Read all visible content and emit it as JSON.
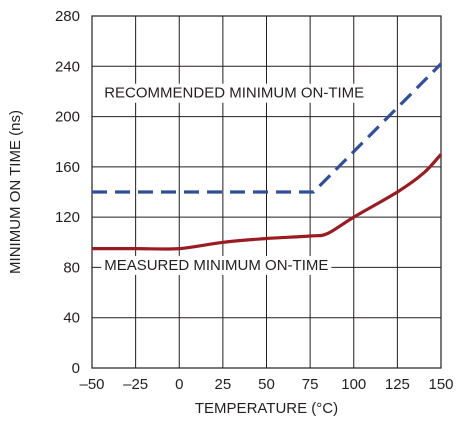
{
  "chart_data": {
    "type": "line",
    "title": "",
    "xlabel": "TEMPERATURE (°C)",
    "ylabel": "MINIMUM ON TIME (ns)",
    "xlim": [
      -50,
      150
    ],
    "ylim": [
      0,
      280
    ],
    "x_ticks": [
      -50,
      -25,
      0,
      25,
      50,
      75,
      100,
      125,
      150
    ],
    "x_tick_labels": [
      "–50",
      "–25",
      "0",
      "25",
      "50",
      "75",
      "100",
      "125",
      "150"
    ],
    "y_ticks": [
      0,
      40,
      80,
      120,
      160,
      200,
      240,
      280
    ],
    "y_tick_labels": [
      "0",
      "40",
      "80",
      "120",
      "160",
      "200",
      "240",
      "280"
    ],
    "grid": true,
    "legend": "none",
    "series": [
      {
        "name": "RECOMMENDED MINIMUM ON-TIME",
        "style": "dashed",
        "color": "#2f4f9a",
        "x": [
          -50,
          77,
          150
        ],
        "y": [
          140,
          140,
          242
        ]
      },
      {
        "name": "MEASURED MINIMUM ON-TIME",
        "style": "solid",
        "color": "#9b1c20",
        "x": [
          -50,
          -25,
          0,
          25,
          50,
          75,
          85,
          100,
          125,
          140,
          150
        ],
        "y": [
          95,
          95,
          95,
          100,
          103,
          105,
          107,
          120,
          140,
          155,
          170
        ]
      }
    ],
    "annotations": [
      {
        "text": "RECOMMENDED MINIMUM ON-TIME",
        "x": -43,
        "y": 215
      },
      {
        "text": "MEASURED MINIMUM ON-TIME",
        "x": -43,
        "y": 78
      }
    ]
  }
}
